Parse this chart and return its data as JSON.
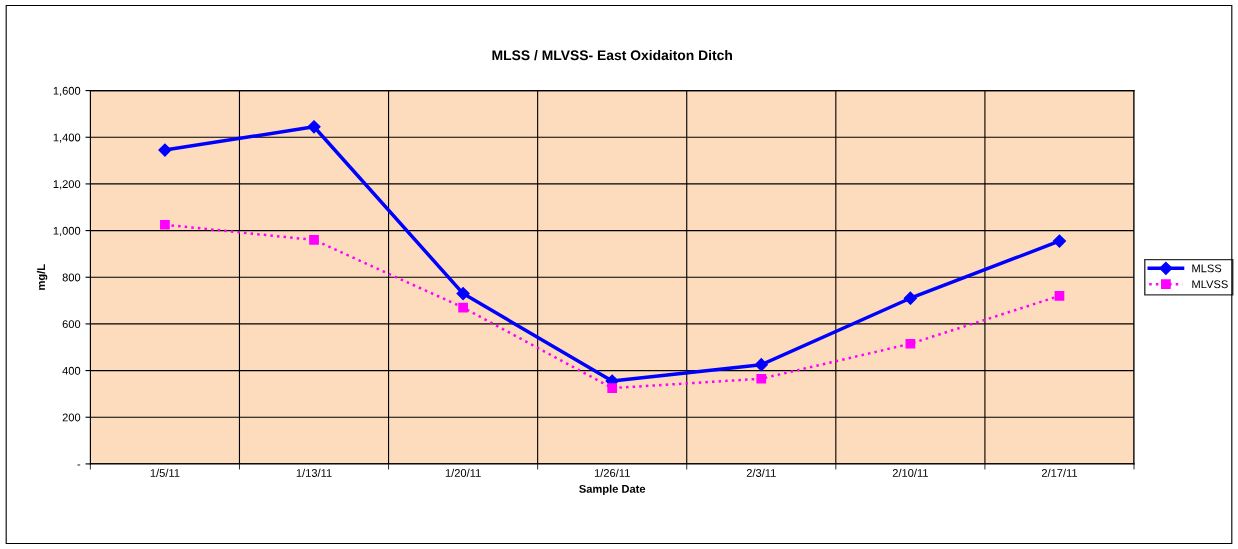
{
  "chart_data": {
    "type": "line",
    "title": "MLSS / MLVSS- East Oxidaiton Ditch",
    "xlabel": "Sample Date",
    "ylabel": "mg/L",
    "categories": [
      "1/5/11",
      "1/13/11",
      "1/20/11",
      "1/26/11",
      "2/3/11",
      "2/10/11",
      "2/17/11"
    ],
    "series": [
      {
        "name": "MLSS",
        "color": "#0000ff",
        "marker": "diamond",
        "line_style": "solid",
        "values": [
          1345,
          1445,
          730,
          355,
          425,
          710,
          955
        ]
      },
      {
        "name": "MLVSS",
        "color": "#ff00ff",
        "marker": "square",
        "line_style": "dotted",
        "values": [
          1025,
          960,
          670,
          325,
          365,
          515,
          720
        ]
      }
    ],
    "ylim": [
      0,
      1600
    ],
    "yticks": [
      {
        "value": 0,
        "label": "-"
      },
      200,
      400,
      600,
      800,
      {
        "value": 1000,
        "label": "1,000"
      },
      {
        "value": 1200,
        "label": "1,200"
      },
      {
        "value": 1400,
        "label": "1,400"
      },
      {
        "value": 1600,
        "label": "1,600"
      }
    ],
    "grid": true,
    "legend": "right"
  }
}
